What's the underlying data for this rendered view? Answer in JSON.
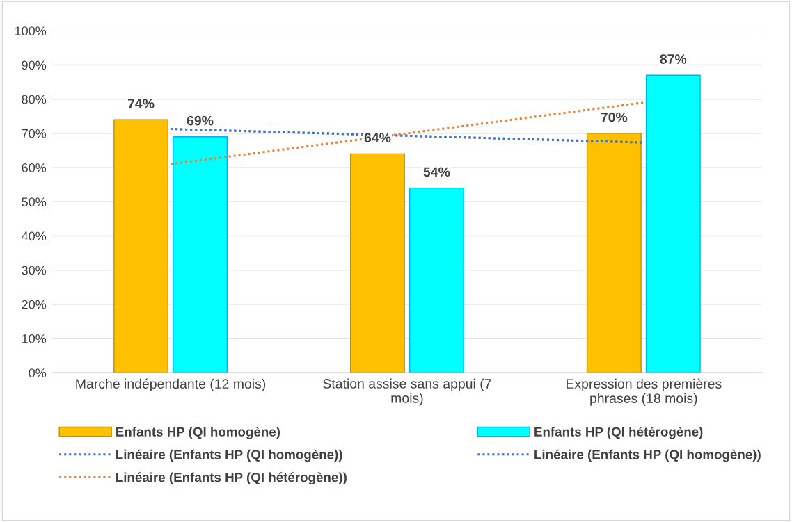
{
  "chart_data": {
    "type": "bar",
    "categories": [
      "Marche indépendante (12 mois)",
      "Station assise sans appui (7\nmois)",
      "Expression des premières\nphrases (18 mois)"
    ],
    "series": [
      {
        "name": "Enfants HP (QI homogène)",
        "color": "#ffc000",
        "values": [
          74,
          64,
          70
        ],
        "value_labels": [
          "74%",
          "64%",
          "70%"
        ]
      },
      {
        "name": "Enfants HP (QI hétérogène)",
        "color": "#00ffff",
        "values": [
          69,
          54,
          87
        ],
        "value_labels": [
          "69%",
          "54%",
          "87%"
        ]
      },
      {
        "name": "Linéaire (Enfants HP (QI homogène))",
        "type": "line",
        "color": "#4472c4",
        "line_style": "dotted",
        "values": [
          71.3,
          69.3,
          67.3
        ]
      },
      {
        "name": "Linéaire (Enfants HP (QI homogène))",
        "type": "line",
        "color": "#4472c4",
        "line_style": "dotted",
        "values": [
          71.3,
          69.3,
          67.3
        ]
      },
      {
        "name": "Linéaire (Enfants HP (QI hétérogène))",
        "type": "line",
        "color": "#ed7d31",
        "line_style": "dotted",
        "values": [
          61,
          70,
          79
        ]
      }
    ],
    "ylim": [
      0,
      100
    ],
    "yticks": [
      {
        "value": 0,
        "label": "0%"
      },
      {
        "value": 10,
        "label": "10%"
      },
      {
        "value": 20,
        "label": "20%"
      },
      {
        "value": 30,
        "label": "30%"
      },
      {
        "value": 40,
        "label": "40%"
      },
      {
        "value": 50,
        "label": "50%"
      },
      {
        "value": 60,
        "label": "60%"
      },
      {
        "value": 70,
        "label": "70%"
      },
      {
        "value": 80,
        "label": "80%"
      },
      {
        "value": 90,
        "label": "90%"
      },
      {
        "value": 100,
        "label": "100%"
      }
    ],
    "grid": "y",
    "legend": "bottom"
  }
}
